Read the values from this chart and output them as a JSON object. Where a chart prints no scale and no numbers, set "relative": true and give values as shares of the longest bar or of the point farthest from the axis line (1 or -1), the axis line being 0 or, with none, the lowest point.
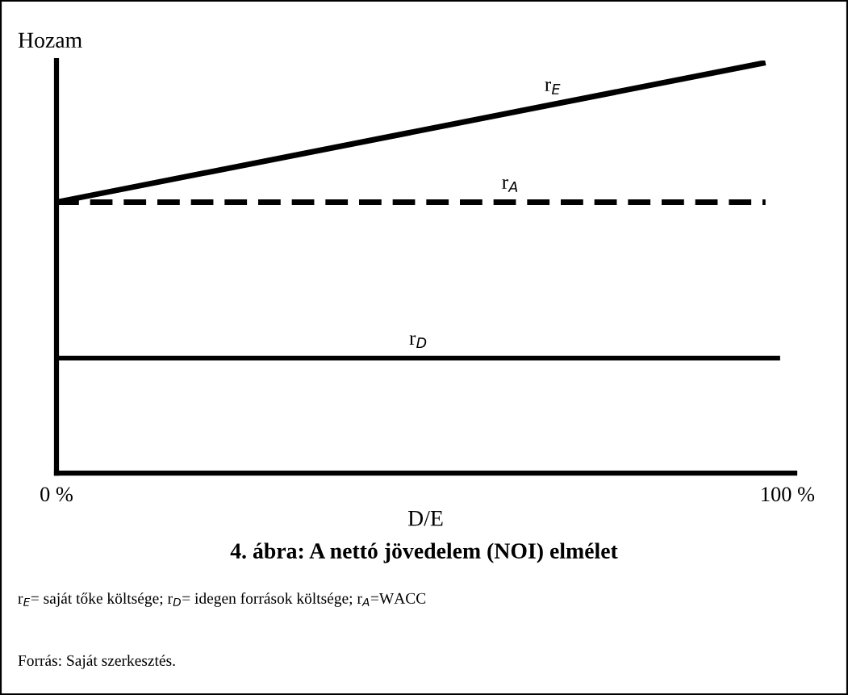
{
  "chart_data": {
    "type": "line",
    "title": "4. ábra: A nettó jövedelem (NOI) elmélet",
    "xlabel": "D/E",
    "ylabel": "Hozam",
    "relative": true,
    "xlim": [
      0,
      101
    ],
    "xticks": [
      {
        "value": 0,
        "label": "0 %"
      },
      {
        "value": 100,
        "label": "100 %"
      }
    ],
    "series": [
      {
        "name": "r$_{E}$",
        "color": "#000000",
        "x": [
          0,
          97
        ],
        "values": [
          0.66,
          1
        ],
        "line_style": "solid"
      },
      {
        "name": "r$_{A}$",
        "color": "#000000",
        "x": [
          0,
          97
        ],
        "values": [
          0.66,
          0.66
        ],
        "line_style": "dashed"
      },
      {
        "name": "r$_{D}$",
        "color": "#000000",
        "x": [
          0,
          99
        ],
        "values": [
          0.28,
          0.28
        ],
        "line_style": "solid"
      }
    ],
    "legend": false,
    "grid": false,
    "marker": "none",
    "annotations": [
      "r$_{E}$= saját tőke költsége; r$_{D}$= idegen források költsége; r$_{A}$=WACC",
      "Forrás: Saját szerkesztés."
    ]
  }
}
